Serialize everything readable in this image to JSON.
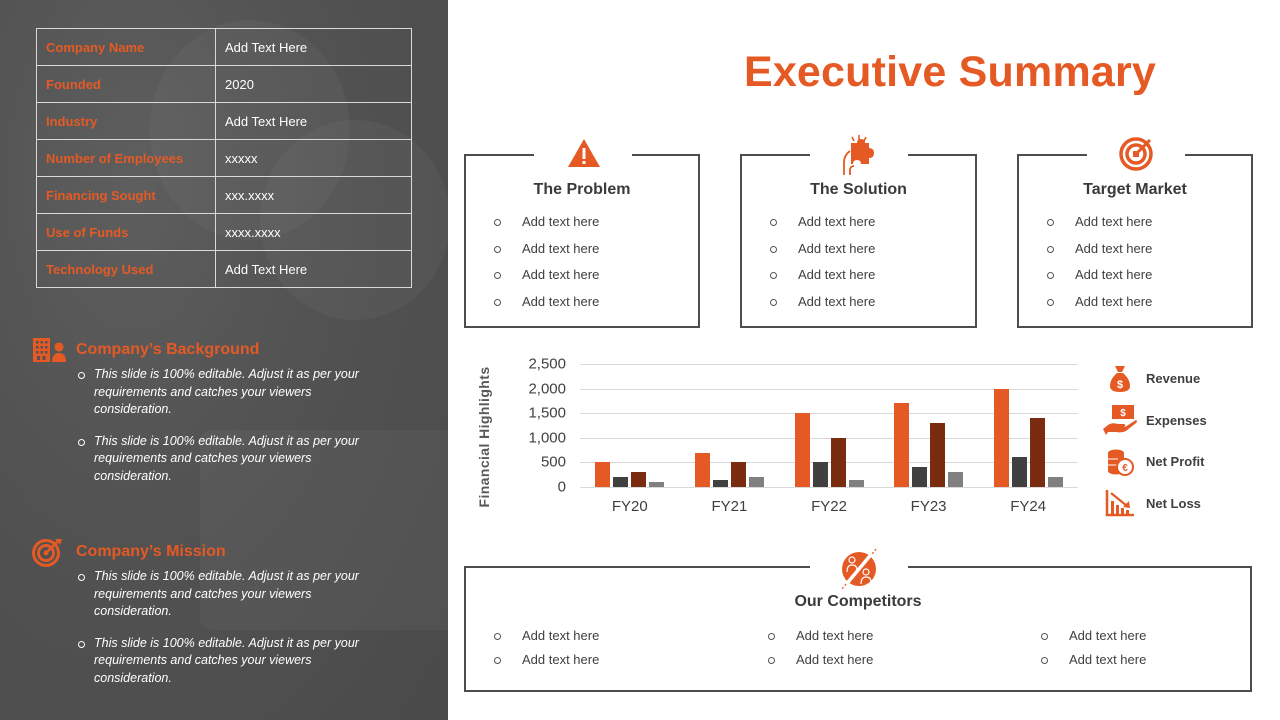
{
  "slide_title": "Executive Summary",
  "company_table": [
    {
      "label": "Company Name",
      "value": "Add Text Here"
    },
    {
      "label": "Founded",
      "value": "2020"
    },
    {
      "label": "Industry",
      "value": "Add Text Here"
    },
    {
      "label": "Number of Employees",
      "value": "xxxxx"
    },
    {
      "label": "Financing Sought",
      "value": "xxx.xxxx"
    },
    {
      "label": "Use of Funds",
      "value": "xxxx.xxxx"
    },
    {
      "label": "Technology Used",
      "value": "Add Text Here"
    }
  ],
  "background": {
    "title": "Company’s Background",
    "icon": "building-person-icon",
    "bullets": [
      "This slide is 100%  editable. Adjust it as per your requirements and catches your viewers consideration.",
      "This slide is 100%  editable. Adjust it as per your requirements and catches your viewers consideration."
    ]
  },
  "mission": {
    "title": "Company’s Mission",
    "icon": "target-icon",
    "bullets": [
      "This slide is 100%  editable. Adjust it as per your requirements and catches your viewers consideration.",
      "This slide is 100%  editable. Adjust it as per your requirements and catches your viewers consideration."
    ]
  },
  "cards": [
    {
      "title": "The Problem",
      "icon": "warning-icon",
      "items": [
        "Add text here",
        "Add text here",
        "Add text here",
        "Add text here"
      ]
    },
    {
      "title": "The Solution",
      "icon": "puzzle-hand-icon",
      "items": [
        "Add text here",
        "Add text here",
        "Add text here",
        "Add text here"
      ]
    },
    {
      "title": "Target Market",
      "icon": "target-icon",
      "items": [
        "Add text here",
        "Add text here",
        "Add text here",
        "Add text here"
      ]
    }
  ],
  "competitors": {
    "title": "Our Competitors",
    "icon": "competitors-icon",
    "columns": [
      [
        "Add text here",
        "Add text here"
      ],
      [
        "Add text here",
        "Add text here"
      ],
      [
        "Add text here",
        "Add text here"
      ]
    ]
  },
  "colors": {
    "accent": "#e55a24",
    "revenue": "#e55a24",
    "expenses": "#404040",
    "net_profit": "#7b2c10",
    "net_loss": "#808080",
    "panel_bg": "#525252",
    "border": "#4d4d4d"
  },
  "chart_data": {
    "type": "bar",
    "title": "",
    "xlabel": "",
    "ylabel": "Financial Highlights",
    "categories": [
      "FY20",
      "FY21",
      "FY22",
      "FY23",
      "FY24"
    ],
    "series": [
      {
        "name": "Revenue",
        "color": "#e55a24",
        "values": [
          500,
          700,
          1500,
          1700,
          2000
        ]
      },
      {
        "name": "Expenses",
        "color": "#404040",
        "values": [
          200,
          150,
          500,
          400,
          600
        ]
      },
      {
        "name": "Net Profit",
        "color": "#7b2c10",
        "values": [
          300,
          500,
          1000,
          1300,
          1400
        ]
      },
      {
        "name": "Net Loss",
        "color": "#808080",
        "values": [
          100,
          200,
          150,
          300,
          200
        ]
      }
    ],
    "ylim": [
      0,
      2500
    ],
    "yticks": [
      "0",
      "500",
      "1,000",
      "1,500",
      "2,000",
      "2,500"
    ],
    "grid": true,
    "legend_position": "right",
    "legend": [
      {
        "label": "Revenue",
        "icon": "money-bag-icon"
      },
      {
        "label": "Expenses",
        "icon": "hand-cash-icon"
      },
      {
        "label": "Net Profit",
        "icon": "coin-stack-euro-icon"
      },
      {
        "label": "Net Loss",
        "icon": "declining-chart-icon"
      }
    ]
  }
}
